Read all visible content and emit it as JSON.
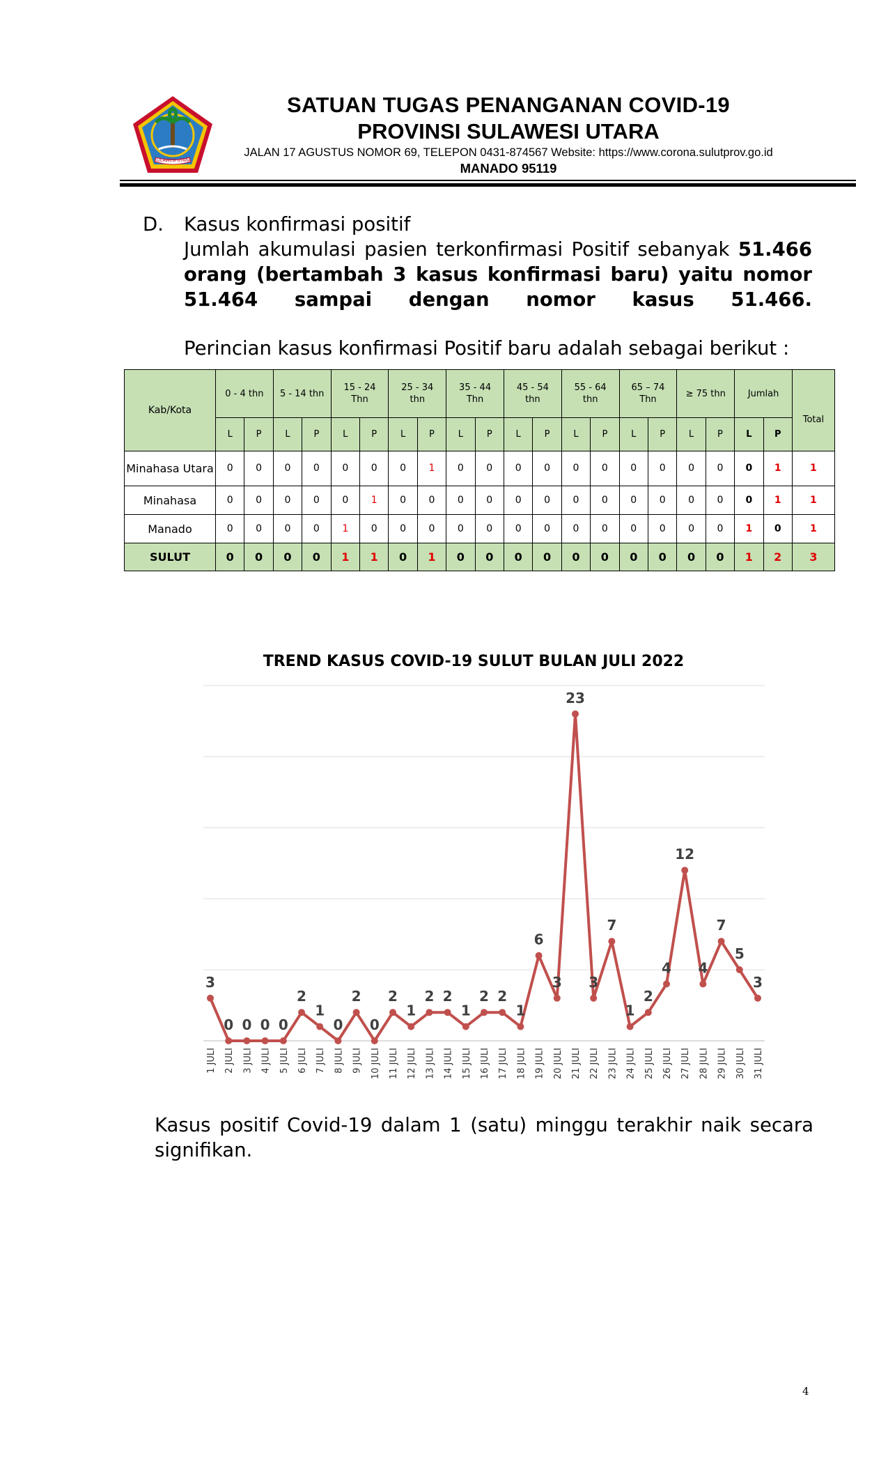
{
  "header": {
    "org_line1": "SATUAN TUGAS PENANGANAN COVID-19",
    "org_line2": "PROVINSI SULAWESI UTARA",
    "address": "JALAN 17 AGUSTUS NOMOR 69, TELEPON 0431-874567 Website: https://www.corona.sulutprov.go.id",
    "city": "MANADO  95119",
    "logo_text": "SULAWESI UTARA"
  },
  "section": {
    "letter": "D.",
    "title": "Kasus konfirmasi positif",
    "para_normal": "Jumlah akumulasi pasien terkonfirmasi Positif sebanyak ",
    "para_bold_1": "51.466 orang (bertambah 3 kasus konfirmasi baru) yaitu nomor",
    "para_bold_2": "51.464 sampai dengan nomor kasus 51.466.",
    "intro": "Perincian kasus konfirmasi Positif baru adalah sebagai berikut :"
  },
  "table": {
    "col_kab": "Kab/Kota",
    "groups": [
      [
        "0 - 4 thn"
      ],
      [
        "5 - 14 thn"
      ],
      [
        "15 - 24",
        "Thn"
      ],
      [
        "25 - 34",
        "thn"
      ],
      [
        "35 - 44",
        "Thn"
      ],
      [
        "45 - 54",
        "thn"
      ],
      [
        "55 - 64",
        "thn"
      ],
      [
        "65 – 74",
        "Thn"
      ],
      [
        "≥ 75 thn"
      ],
      [
        "Jumlah"
      ]
    ],
    "col_total": "Total",
    "sub": [
      "L",
      "P"
    ],
    "rows": [
      {
        "name": "Minahasa Utara",
        "values": [
          "0",
          "0",
          "0",
          "0",
          "0",
          "0",
          "0",
          "1",
          "0",
          "0",
          "0",
          "0",
          "0",
          "0",
          "0",
          "0",
          "0",
          "0",
          "0",
          "1"
        ],
        "total": "1"
      },
      {
        "name": "Minahasa",
        "values": [
          "0",
          "0",
          "0",
          "0",
          "0",
          "1",
          "0",
          "0",
          "0",
          "0",
          "0",
          "0",
          "0",
          "0",
          "0",
          "0",
          "0",
          "0",
          "0",
          "1"
        ],
        "total": "1"
      },
      {
        "name": "Manado",
        "values": [
          "0",
          "0",
          "0",
          "0",
          "1",
          "0",
          "0",
          "0",
          "0",
          "0",
          "0",
          "0",
          "0",
          "0",
          "0",
          "0",
          "0",
          "0",
          "1",
          "0"
        ],
        "total": "1"
      }
    ],
    "footer": {
      "name": "SULUT",
      "values": [
        "0",
        "0",
        "0",
        "0",
        "1",
        "1",
        "0",
        "1",
        "0",
        "0",
        "0",
        "0",
        "0",
        "0",
        "0",
        "0",
        "0",
        "0",
        "1",
        "2"
      ],
      "total": "3"
    }
  },
  "chart_data": {
    "type": "line",
    "title": "TREND KASUS COVID-19 SULUT BULAN JULI 2022",
    "categories": [
      "1 JULI",
      "2 JULI",
      "3 JULI",
      "4 JULI",
      "5 JULI",
      "6 JULI",
      "7 JULI",
      "8 JULI",
      "9 JULI",
      "10 JULI",
      "11 JULI",
      "12 JULI",
      "13 JULI",
      "14 JULI",
      "15 JULI",
      "16 JULI",
      "17 JULI",
      "18 JULI",
      "19 JULI",
      "20 JULI",
      "21 JULI",
      "22 JULI",
      "23 JULI",
      "24 JULI",
      "25 JULI",
      "26 JULI",
      "27 JULI",
      "28 JULI",
      "29 JULI",
      "30 JULI",
      "31 JULI"
    ],
    "values": [
      3,
      0,
      0,
      0,
      0,
      2,
      1,
      0,
      2,
      0,
      2,
      1,
      2,
      2,
      1,
      2,
      2,
      1,
      6,
      3,
      23,
      3,
      7,
      1,
      2,
      4,
      12,
      4,
      7,
      5,
      3
    ],
    "ylim": [
      0,
      25
    ],
    "gridlines": [
      0,
      5,
      10,
      15,
      20,
      25
    ],
    "grid": true,
    "legend": "none",
    "line_color": "#c0504d",
    "label_color": "#404040"
  },
  "closing": {
    "line1": "Kasus positif Covid-19 dalam 1 (satu) minggu terakhir naik secara",
    "line2": "signifikan."
  },
  "page_number": "4"
}
